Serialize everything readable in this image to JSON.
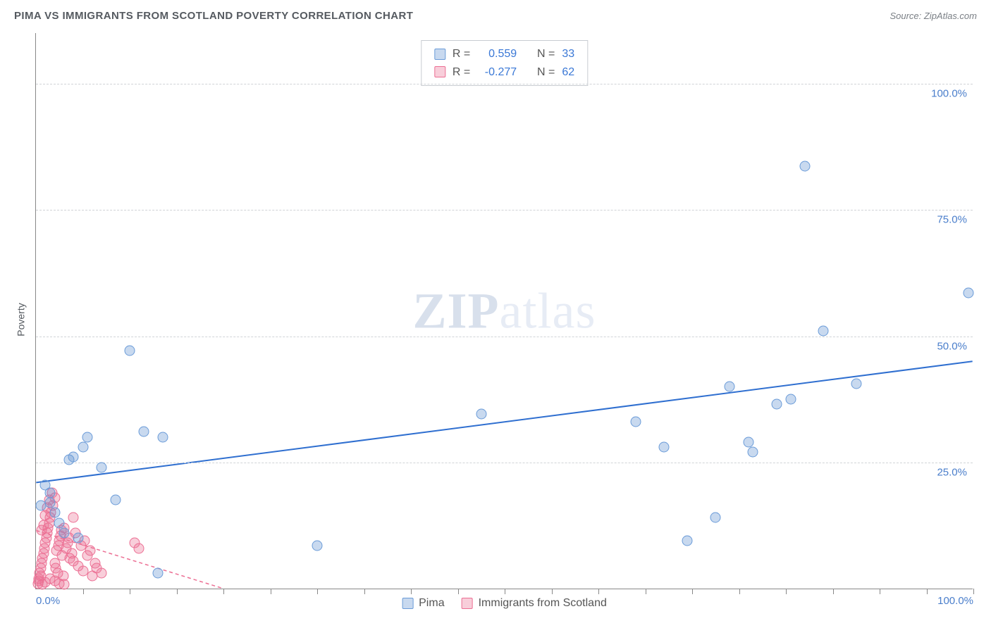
{
  "header": {
    "title": "PIMA VS IMMIGRANTS FROM SCOTLAND POVERTY CORRELATION CHART",
    "source_prefix": "Source: ",
    "source_name": "ZipAtlas.com"
  },
  "chart": {
    "type": "scatter",
    "ylabel": "Poverty",
    "watermark_zip": "ZIP",
    "watermark_atlas": "atlas",
    "xlim": [
      0,
      100
    ],
    "ylim": [
      0,
      110
    ],
    "x_ticks_minor_step": 5,
    "x_ticks_major": [
      0,
      100
    ],
    "x_tick_labels": {
      "0": "0.0%",
      "100": "100.0%"
    },
    "y_gridlines": [
      25,
      50,
      75,
      100
    ],
    "y_tick_labels": {
      "25": "25.0%",
      "50": "50.0%",
      "75": "75.0%",
      "100": "100.0%"
    },
    "background_color": "#ffffff",
    "grid_color": "#d0d3d7",
    "axis_color": "#888888",
    "marker_radius": 7.5,
    "series": {
      "pima": {
        "label": "Pima",
        "color_fill": "rgba(96,145,210,0.35)",
        "color_border": "#6a9bd8",
        "R": "0.559",
        "N": "33",
        "trend": {
          "x1": 0,
          "y1": 21,
          "x2": 100,
          "y2": 45,
          "color": "#2f6fd0",
          "width": 2,
          "dash": "none"
        },
        "points": [
          [
            1.0,
            20.5
          ],
          [
            1.5,
            19.0
          ],
          [
            0.5,
            16.5
          ],
          [
            1.5,
            17.0
          ],
          [
            2.0,
            15.0
          ],
          [
            3.5,
            25.5
          ],
          [
            4.0,
            26.0
          ],
          [
            5.0,
            28.0
          ],
          [
            5.5,
            30.0
          ],
          [
            7.0,
            24.0
          ],
          [
            8.5,
            17.5
          ],
          [
            10.0,
            47.0
          ],
          [
            11.5,
            31.0
          ],
          [
            13.5,
            30.0
          ],
          [
            13.0,
            3.0
          ],
          [
            2.5,
            13.0
          ],
          [
            3.0,
            11.0
          ],
          [
            4.5,
            10.0
          ],
          [
            30.0,
            8.5
          ],
          [
            47.5,
            34.5
          ],
          [
            64.0,
            33.0
          ],
          [
            67.0,
            28.0
          ],
          [
            69.5,
            9.5
          ],
          [
            72.5,
            14.0
          ],
          [
            74.0,
            40.0
          ],
          [
            76.0,
            29.0
          ],
          [
            76.5,
            27.0
          ],
          [
            79.0,
            36.5
          ],
          [
            80.5,
            37.5
          ],
          [
            82.0,
            83.5
          ],
          [
            84.0,
            51.0
          ],
          [
            87.5,
            40.5
          ],
          [
            99.5,
            58.5
          ]
        ]
      },
      "scotland": {
        "label": "Immigrants from Scotland",
        "color_fill": "rgba(236,114,150,0.35)",
        "color_border": "#ec6e93",
        "R": "-0.277",
        "N": "62",
        "trend": {
          "x1": 0,
          "y1": 11.5,
          "x2": 20,
          "y2": 0,
          "color": "#ec6e93",
          "width": 1.5,
          "dash": "5,4"
        },
        "points": [
          [
            0.3,
            2.0
          ],
          [
            0.4,
            3.0
          ],
          [
            0.5,
            4.0
          ],
          [
            0.6,
            5.0
          ],
          [
            0.7,
            6.0
          ],
          [
            0.8,
            7.0
          ],
          [
            0.9,
            8.0
          ],
          [
            1.0,
            9.0
          ],
          [
            1.1,
            10.0
          ],
          [
            1.2,
            11.0
          ],
          [
            0.6,
            11.5
          ],
          [
            0.8,
            12.5
          ],
          [
            1.3,
            12.0
          ],
          [
            1.4,
            13.0
          ],
          [
            1.5,
            14.0
          ],
          [
            1.0,
            14.5
          ],
          [
            1.6,
            15.0
          ],
          [
            1.2,
            16.0
          ],
          [
            1.8,
            16.5
          ],
          [
            1.4,
            17.5
          ],
          [
            2.0,
            18.0
          ],
          [
            1.7,
            19.0
          ],
          [
            2.2,
            7.5
          ],
          [
            2.4,
            8.5
          ],
          [
            2.5,
            9.5
          ],
          [
            2.6,
            10.5
          ],
          [
            2.7,
            11.5
          ],
          [
            2.8,
            6.5
          ],
          [
            2.0,
            5.0
          ],
          [
            2.1,
            4.0
          ],
          [
            2.3,
            3.0
          ],
          [
            2.9,
            2.5
          ],
          [
            3.0,
            12.0
          ],
          [
            3.2,
            8.0
          ],
          [
            3.4,
            9.0
          ],
          [
            3.5,
            10.0
          ],
          [
            3.6,
            6.0
          ],
          [
            3.8,
            7.0
          ],
          [
            4.0,
            5.5
          ],
          [
            4.2,
            11.0
          ],
          [
            4.5,
            4.5
          ],
          [
            4.8,
            8.5
          ],
          [
            5.0,
            3.5
          ],
          [
            5.2,
            9.5
          ],
          [
            5.5,
            6.5
          ],
          [
            5.8,
            7.5
          ],
          [
            6.0,
            2.5
          ],
          [
            6.3,
            5.0
          ],
          [
            6.5,
            4.0
          ],
          [
            7.0,
            3.0
          ],
          [
            0.2,
            1.0
          ],
          [
            0.3,
            1.5
          ],
          [
            0.5,
            2.5
          ],
          [
            0.7,
            0.8
          ],
          [
            1.0,
            1.2
          ],
          [
            1.5,
            2.0
          ],
          [
            2.0,
            1.5
          ],
          [
            2.5,
            1.0
          ],
          [
            3.0,
            0.8
          ],
          [
            10.5,
            9.0
          ],
          [
            11.0,
            8.0
          ],
          [
            4.0,
            14.0
          ]
        ]
      }
    },
    "legend_top": {
      "r_label": "R =",
      "n_label": "N ="
    }
  }
}
